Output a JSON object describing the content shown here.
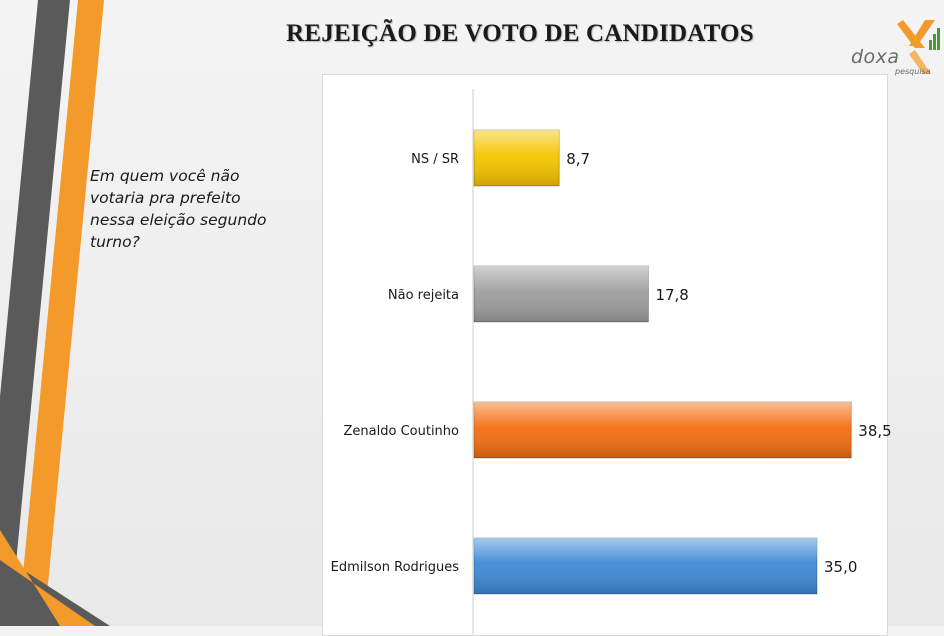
{
  "title": "REJEIÇÃO DE VOTO DE CANDIDATOS",
  "question": "Em quem você não votaria pra prefeito nessa eleição segundo turno?",
  "logo": {
    "name": "doxa",
    "tagline": "pesquisa"
  },
  "chart_data": {
    "type": "bar",
    "orientation": "horizontal",
    "categories": [
      "NS / SR",
      "Não rejeita",
      "Zenaldo Coutinho",
      "Edmilson Rodrigues"
    ],
    "values": [
      8.7,
      17.8,
      38.5,
      35.0
    ],
    "value_labels": [
      "8,7",
      "17,8",
      "38,5",
      "35,0"
    ],
    "colors": [
      "#f5c400",
      "#9e9e9e",
      "#f36f12",
      "#3d8ad6"
    ],
    "xlim": [
      0,
      40
    ],
    "grid": false,
    "legend": "none"
  }
}
